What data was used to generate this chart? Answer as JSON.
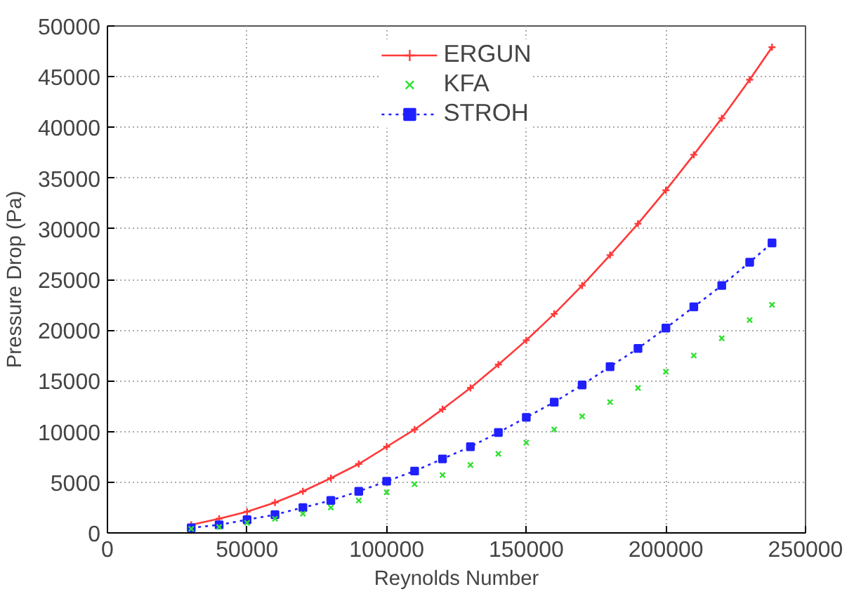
{
  "chart_data": {
    "type": "line",
    "xlabel": "Reynolds Number",
    "ylabel": "Pressure Drop (Pa)",
    "x": [
      30000,
      40000,
      50000,
      60000,
      70000,
      80000,
      90000,
      100000,
      110000,
      120000,
      130000,
      140000,
      150000,
      160000,
      170000,
      180000,
      190000,
      200000,
      210000,
      220000,
      230000,
      238000
    ],
    "xlim": [
      0,
      250000
    ],
    "xticks": [
      0,
      50000,
      100000,
      150000,
      200000,
      250000
    ],
    "ylim": [
      0,
      50000
    ],
    "yticks": [
      0,
      5000,
      10000,
      15000,
      20000,
      25000,
      30000,
      35000,
      40000,
      45000,
      50000
    ],
    "grid": true,
    "legend": "top",
    "series": [
      {
        "name": "ERGUN",
        "color": "#ff3838",
        "marker": "cross",
        "line_style": "solid",
        "values": [
          800,
          1400,
          2100,
          3000,
          4100,
          5400,
          6800,
          8500,
          10200,
          12200,
          14300,
          16600,
          19000,
          21600,
          24400,
          27400,
          30500,
          33800,
          37300,
          40900,
          44700,
          47900
        ]
      },
      {
        "name": "KFA",
        "type": "scatter",
        "color": "#30e030",
        "marker": "cross",
        "values": [
          400,
          600,
          1000,
          1400,
          1900,
          2500,
          3200,
          4000,
          4800,
          5700,
          6700,
          7800,
          8900,
          10200,
          11500,
          12900,
          14300,
          15900,
          17500,
          19200,
          21000,
          22500
        ]
      },
      {
        "name": "STROH",
        "color": "#2020ff",
        "marker": "square",
        "line_style": "dotted",
        "values": [
          500,
          800,
          1300,
          1800,
          2500,
          3200,
          4100,
          5100,
          6100,
          7300,
          8500,
          9900,
          11400,
          12900,
          14600,
          16400,
          18200,
          20200,
          22300,
          24400,
          26700,
          28600
        ]
      }
    ]
  }
}
